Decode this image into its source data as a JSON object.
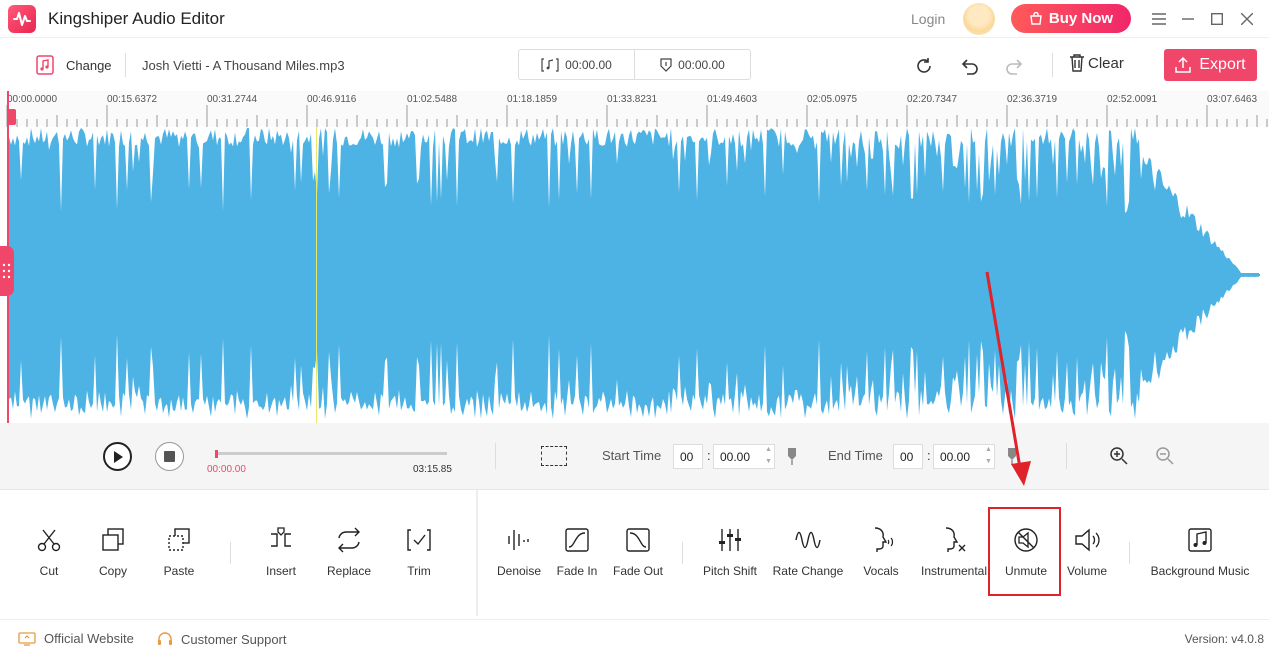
{
  "app": {
    "title": "Kingshiper Audio Editor",
    "login": "Login",
    "buy_now": "Buy Now"
  },
  "toolbar": {
    "change_label": "Change",
    "filename": "Josh Vietti - A Thousand Miles.mp3",
    "time_left": "00:00.00",
    "time_right": "00:00.00",
    "clear_label": "Clear",
    "export_label": "Export"
  },
  "timeline": {
    "ticks": [
      "00:00.0000",
      "00:15.6372",
      "00:31.2744",
      "00:46.9116",
      "01:02.5488",
      "01:18.1859",
      "01:33.8231",
      "01:49.4603",
      "02:05.0975",
      "02:20.7347",
      "02:36.3719",
      "02:52.0091",
      "03:07.6463"
    ]
  },
  "waveform": {
    "color": "#4db3e4"
  },
  "transport": {
    "current_time": "00:00.00",
    "duration": "03:15.85",
    "progress": 0.0,
    "start_time_label": "Start Time",
    "start_min": "00",
    "start_sec": "00.00",
    "end_time_label": "End Time",
    "end_min": "00",
    "end_sec": "00.00"
  },
  "tools_left": [
    {
      "label": "Cut",
      "icon": "scissors-icon"
    },
    {
      "label": "Copy",
      "icon": "copy-icon"
    },
    {
      "label": "Paste",
      "icon": "paste-icon"
    },
    {
      "label": "Insert",
      "icon": "insert-icon"
    },
    {
      "label": "Replace",
      "icon": "replace-icon"
    },
    {
      "label": "Trim",
      "icon": "trim-icon"
    }
  ],
  "tools_right": [
    {
      "label": "Denoise",
      "icon": "denoise-icon"
    },
    {
      "label": "Fade In",
      "icon": "fade-in-icon"
    },
    {
      "label": "Fade Out",
      "icon": "fade-out-icon"
    },
    {
      "label": "Pitch Shift",
      "icon": "pitch-shift-icon"
    },
    {
      "label": "Rate Change",
      "icon": "rate-change-icon"
    },
    {
      "label": "Vocals",
      "icon": "vocals-icon"
    },
    {
      "label": "Instrumental",
      "icon": "instrumental-icon"
    },
    {
      "label": "Unmute",
      "icon": "unmute-icon"
    },
    {
      "label": "Volume",
      "icon": "volume-icon"
    },
    {
      "label": "Background Music",
      "icon": "background-music-icon"
    }
  ],
  "status": {
    "official_website": "Official Website",
    "customer_support": "Customer Support",
    "version": "Version: v4.0.8"
  },
  "colors": {
    "accent": "#f0466a",
    "highlight": "#e0222a"
  }
}
